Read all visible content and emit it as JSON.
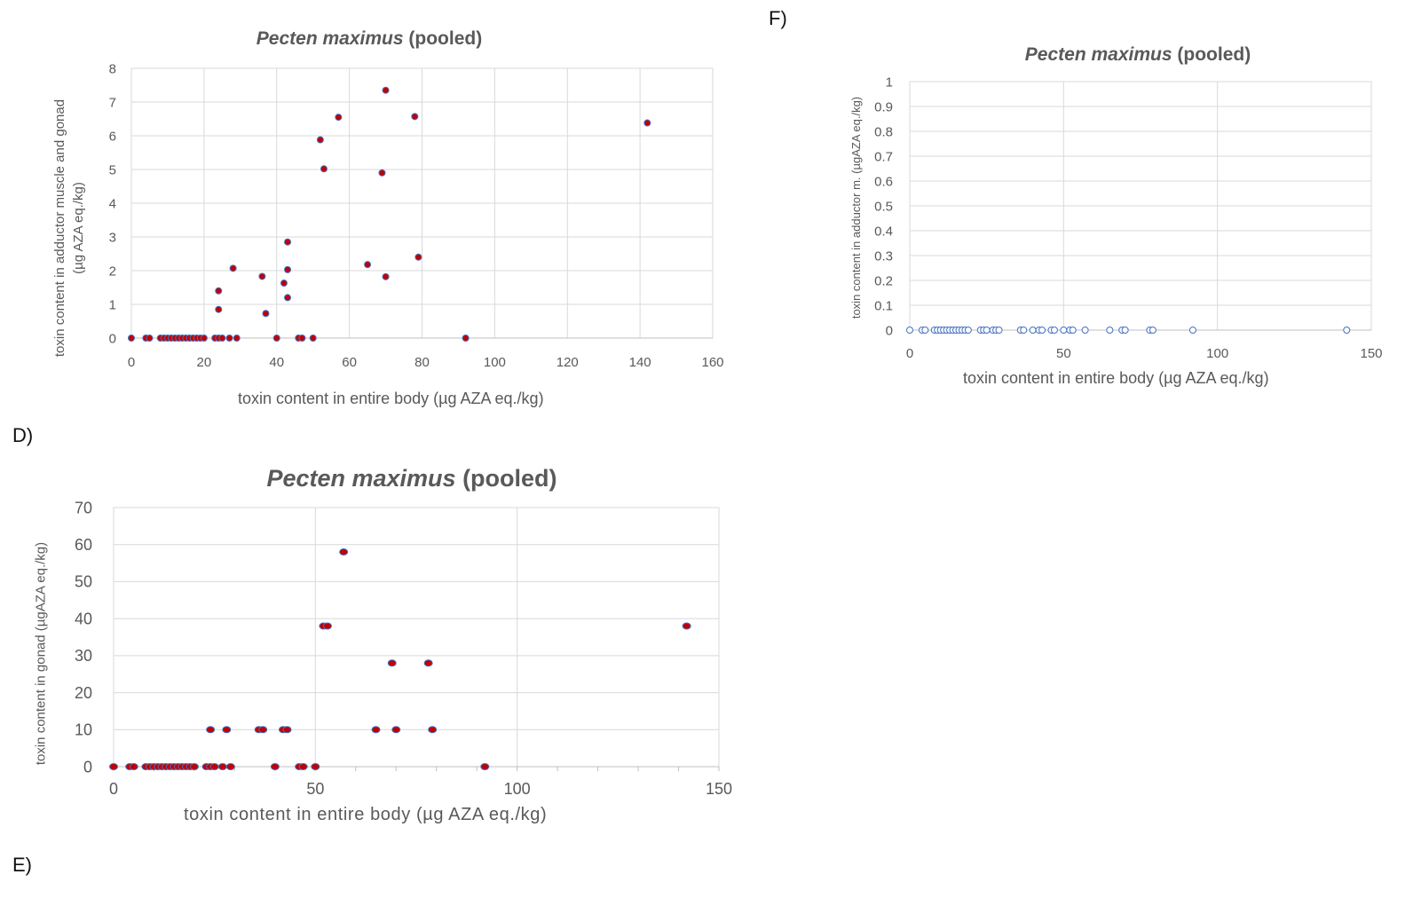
{
  "panels": {
    "d": "D)",
    "e": "E)",
    "f": "F)"
  },
  "chart_data": [
    {
      "id": "D",
      "type": "scatter",
      "title_italic": "Pecten maximus",
      "title_rest": "(pooled)",
      "xlabel": "toxin content in entire body (µg AZA eq./kg)",
      "ylabel_line1": "toxin content in adductor muscle and gonad",
      "ylabel_line2": "(µg AZA eq./kg)",
      "xlim": [
        0,
        160
      ],
      "ylim": [
        0,
        8
      ],
      "xticks": [
        0,
        20,
        40,
        60,
        80,
        100,
        120,
        140,
        160
      ],
      "yticks": [
        0,
        1,
        2,
        3,
        4,
        5,
        6,
        7,
        8
      ],
      "grid": true,
      "marker": {
        "fill": "#c00000",
        "stroke": "#4472c4"
      },
      "x": [
        0,
        4,
        5,
        8,
        9,
        10,
        11,
        12,
        13,
        14,
        15,
        16,
        17,
        18,
        19,
        20,
        23,
        24,
        25,
        27,
        29,
        40,
        46,
        47,
        50,
        92,
        24,
        24,
        28,
        36,
        37,
        42,
        43,
        43,
        43,
        52,
        53,
        57,
        65,
        69,
        70,
        70,
        78,
        79,
        142
      ],
      "y": [
        0,
        0,
        0,
        0,
        0,
        0,
        0,
        0,
        0,
        0,
        0,
        0,
        0,
        0,
        0,
        0,
        0,
        0,
        0,
        0,
        0,
        0,
        0,
        0,
        0,
        0,
        1.4,
        0.85,
        2.07,
        1.83,
        0.73,
        1.63,
        1.2,
        2.03,
        2.85,
        5.88,
        5.02,
        6.55,
        2.18,
        4.9,
        1.82,
        7.35,
        6.57,
        2.4,
        6.38
      ]
    },
    {
      "id": "E",
      "type": "scatter",
      "title_italic": "Pecten maximus",
      "title_rest": "(pooled)",
      "xlabel": "toxin content in entire body (µg AZA eq./kg)",
      "ylabel_line1": "toxin content in gonad  (µgAZA eq./kg)",
      "ylabel_line2": "",
      "xlim": [
        0,
        150
      ],
      "ylim": [
        0,
        70
      ],
      "xticks": [
        0,
        50,
        100,
        150
      ],
      "yticks": [
        0,
        10,
        20,
        30,
        40,
        50,
        60,
        70
      ],
      "grid": true,
      "marker": {
        "fill": "#c00000",
        "stroke": "#4472c4"
      },
      "x": [
        0,
        4,
        5,
        8,
        9,
        10,
        11,
        12,
        13,
        14,
        15,
        16,
        17,
        18,
        19,
        20,
        23,
        24,
        25,
        27,
        29,
        40,
        46,
        47,
        50,
        92,
        24,
        28,
        36,
        37,
        42,
        43,
        52,
        53,
        57,
        65,
        69,
        70,
        78,
        79,
        142
      ],
      "y": [
        0,
        0,
        0,
        0,
        0,
        0,
        0,
        0,
        0,
        0,
        0,
        0,
        0,
        0,
        0,
        0,
        0,
        0,
        0,
        0,
        0,
        0,
        0,
        0,
        0,
        0,
        10,
        10,
        10,
        10,
        10,
        10,
        38,
        38,
        58,
        10,
        28,
        10,
        28,
        10,
        38
      ]
    },
    {
      "id": "F",
      "type": "scatter",
      "title_italic": "Pecten maximus",
      "title_rest": "(pooled)",
      "xlabel": "toxin content in entire body (µg AZA eq./kg)",
      "ylabel_line1": "toxin content in adductor m. (µgAZA  eq./kg)",
      "ylabel_line2": "",
      "xlim": [
        0,
        150
      ],
      "ylim": [
        0,
        1
      ],
      "xticks": [
        0,
        50,
        100,
        150
      ],
      "yticks": [
        0,
        0.1,
        0.2,
        0.3,
        0.4,
        0.5,
        0.6,
        0.7,
        0.8,
        0.9,
        1
      ],
      "grid": true,
      "marker": {
        "fill": "#ffffff",
        "stroke": "#4472c4"
      },
      "x": [
        0,
        4,
        5,
        8,
        9,
        10,
        11,
        12,
        13,
        14,
        15,
        16,
        17,
        18,
        19,
        23,
        24,
        25,
        27,
        28,
        29,
        36,
        37,
        40,
        42,
        43,
        46,
        47,
        50,
        52,
        53,
        57,
        65,
        69,
        70,
        78,
        79,
        92,
        142
      ],
      "y": [
        0,
        0,
        0,
        0,
        0,
        0,
        0,
        0,
        0,
        0,
        0,
        0,
        0,
        0,
        0,
        0,
        0,
        0,
        0,
        0,
        0,
        0,
        0,
        0,
        0,
        0,
        0,
        0,
        0,
        0,
        0,
        0,
        0,
        0,
        0,
        0,
        0,
        0,
        0
      ]
    }
  ]
}
